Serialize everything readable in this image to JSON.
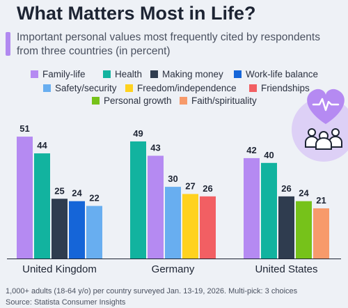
{
  "title": "What Matters Most in Life?",
  "subtitle": "Important personal values most frequently cited by respondents from three countries (in percent)",
  "footer": {
    "note": "1,000+ adults (18-64 y/o) per country surveyed Jan. 13-19, 2026. Multi-pick: 3 choices",
    "source": "Source: Statista Consumer Insights"
  },
  "icons": [
    "heart-pulse-icon",
    "people-group-icon"
  ],
  "legend": [
    {
      "label": "Family-life",
      "color": "#b58af2"
    },
    {
      "label": "Health",
      "color": "#12b39f"
    },
    {
      "label": "Making money",
      "color": "#2f3c4f"
    },
    {
      "label": "Work-life balance",
      "color": "#1565d8"
    },
    {
      "label": "Safety/security",
      "color": "#68aef0"
    },
    {
      "label": "Freedom/independence",
      "color": "#ffd21f"
    },
    {
      "label": "Friendships",
      "color": "#f25f63"
    },
    {
      "label": "Personal growth",
      "color": "#76c21a"
    },
    {
      "label": "Faith/spirituality",
      "color": "#f79a6b"
    }
  ],
  "chart_data": {
    "type": "bar",
    "title": "What Matters Most in Life?",
    "subtitle": "Important personal values most frequently cited by respondents from three countries (in percent)",
    "ylim": [
      0,
      55
    ],
    "grid": false,
    "legend_position": "top",
    "groups": [
      {
        "category": "United Kingdom",
        "bars": [
          {
            "series": "Family-life",
            "value": 51
          },
          {
            "series": "Health",
            "value": 44
          },
          {
            "series": "Making money",
            "value": 25
          },
          {
            "series": "Work-life balance",
            "value": 24
          },
          {
            "series": "Safety/security",
            "value": 22
          }
        ]
      },
      {
        "category": "Germany",
        "bars": [
          {
            "series": "Health",
            "value": 49
          },
          {
            "series": "Family-life",
            "value": 43
          },
          {
            "series": "Safety/security",
            "value": 30
          },
          {
            "series": "Freedom/independence",
            "value": 27
          },
          {
            "series": "Friendships",
            "value": 26
          }
        ]
      },
      {
        "category": "United States",
        "bars": [
          {
            "series": "Family-life",
            "value": 42
          },
          {
            "series": "Health",
            "value": 40
          },
          {
            "series": "Making money",
            "value": 26
          },
          {
            "series": "Personal growth",
            "value": 24
          },
          {
            "series": "Faith/spirituality",
            "value": 21
          }
        ]
      }
    ]
  }
}
